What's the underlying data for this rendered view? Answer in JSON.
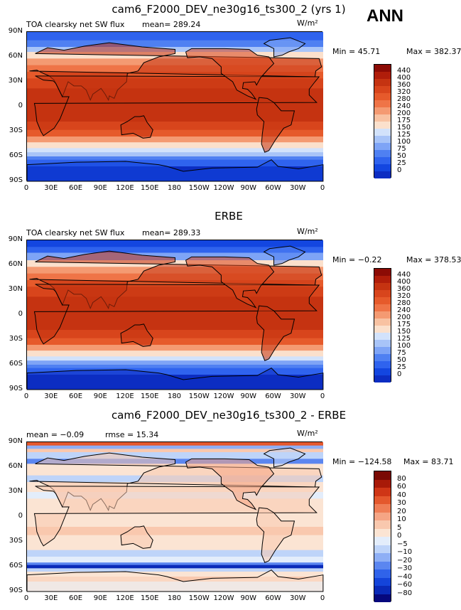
{
  "header": {
    "ann": "ANN"
  },
  "panels": [
    {
      "title": "cam6_F2000_DEV_ne30g16_ts300_2 (yrs 1)",
      "left": "TOA clearsky net SW flux",
      "mean": "mean= 289.24",
      "units": "W/m²",
      "min": "Min =  45.71",
      "max": "Max = 382.37",
      "colorbar": [
        "440",
        "400",
        "360",
        "320",
        "280",
        "240",
        "200",
        "175",
        "150",
        "125",
        "100",
        "75",
        "50",
        "25",
        "0"
      ]
    },
    {
      "title": "ERBE",
      "left": "TOA clearsky net SW flux",
      "mean": "mean= 289.33",
      "units": "W/m²",
      "min": "Min =  −0.22",
      "max": "Max = 378.53",
      "colorbar": [
        "440",
        "400",
        "360",
        "320",
        "280",
        "240",
        "200",
        "175",
        "150",
        "125",
        "100",
        "75",
        "50",
        "25",
        "0"
      ]
    },
    {
      "title": "cam6_F2000_DEV_ne30g16_ts300_2 - ERBE",
      "left": "mean =  −0.09",
      "mean": "rmse =  15.34",
      "units": "W/m²",
      "min": "Min = −124.58",
      "max": "Max =  83.71",
      "colorbar": [
        "80",
        "60",
        "40",
        "30",
        "20",
        "10",
        "5",
        "0",
        "−5",
        "−10",
        "−20",
        "−30",
        "−40",
        "−60",
        "−80"
      ]
    }
  ],
  "lat_ticks": [
    "90N",
    "60N",
    "30N",
    "0",
    "30S",
    "60S",
    "90S"
  ],
  "lon_ticks": [
    "0",
    "30E",
    "60E",
    "90E",
    "120E",
    "150E",
    "180",
    "150W",
    "120W",
    "90W",
    "60W",
    "30W",
    "0"
  ],
  "palettes": {
    "flux": [
      "#080a8a",
      "#0c2dc2",
      "#1346e0",
      "#2f63ee",
      "#4f80f2",
      "#7ea4f6",
      "#a8c4f8",
      "#d2e2fb",
      "#fbe0cc",
      "#f8c2a2",
      "#f49a72",
      "#ef7447",
      "#e65a2b",
      "#d8451c",
      "#c53311",
      "#b01d0a",
      "#8c0b05"
    ],
    "diff": [
      "#06087d",
      "#0a2ab8",
      "#1444da",
      "#3063ea",
      "#5b86f0",
      "#8eaff5",
      "#bed4f9",
      "#e3edfb",
      "#fbe4d3",
      "#f9c8ae",
      "#f5a585",
      "#ef7e56",
      "#e4582d",
      "#cf3616",
      "#a81a08",
      "#7a0a04"
    ]
  }
}
